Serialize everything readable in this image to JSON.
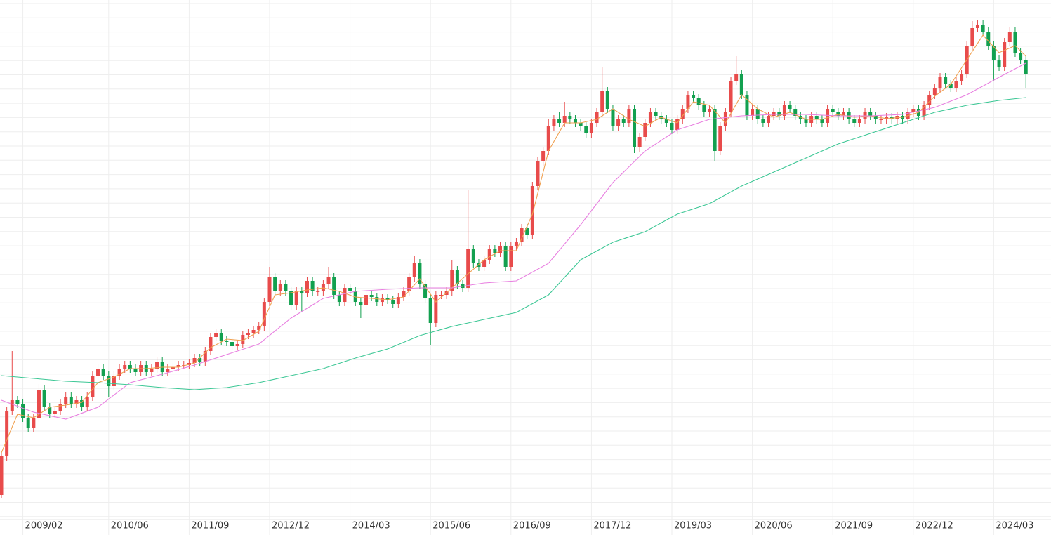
{
  "chart_data": {
    "type": "candlestick",
    "up_color": "#e84b4b",
    "down_color": "#12a04f",
    "ylim": [
      0,
      715
    ],
    "grid": true,
    "categories": [
      null,
      null,
      null,
      null,
      "2009/02",
      null,
      null,
      null,
      null,
      null,
      null,
      null,
      null,
      null,
      null,
      null,
      null,
      null,
      null,
      null,
      "2010/06",
      null,
      null,
      null,
      null,
      null,
      null,
      null,
      null,
      null,
      null,
      null,
      null,
      null,
      null,
      "2011/09",
      null,
      null,
      null,
      null,
      null,
      null,
      null,
      null,
      null,
      null,
      null,
      null,
      null,
      null,
      "2012/12",
      null,
      null,
      null,
      null,
      null,
      null,
      null,
      null,
      null,
      null,
      null,
      null,
      null,
      null,
      "2014/03",
      null,
      null,
      null,
      null,
      null,
      null,
      null,
      null,
      null,
      null,
      null,
      null,
      null,
      null,
      "2015/06",
      null,
      null,
      null,
      null,
      null,
      null,
      null,
      null,
      null,
      null,
      null,
      null,
      null,
      null,
      "2016/09",
      null,
      null,
      null,
      null,
      null,
      null,
      null,
      null,
      null,
      null,
      null,
      null,
      null,
      null,
      "2017/12",
      null,
      null,
      null,
      null,
      null,
      null,
      null,
      null,
      null,
      null,
      null,
      null,
      null,
      null,
      "2019/03",
      null,
      null,
      null,
      null,
      null,
      null,
      null,
      null,
      null,
      null,
      null,
      null,
      null,
      null,
      "2020/06",
      null,
      null,
      null,
      null,
      null,
      null,
      null,
      null,
      null,
      null,
      null,
      null,
      null,
      null,
      "2021/09",
      null,
      null,
      null,
      null,
      null,
      null,
      null,
      null,
      null,
      null,
      null,
      null,
      null,
      null,
      "2022/12",
      null,
      null,
      null,
      null,
      null,
      null,
      null,
      null,
      null,
      null,
      null,
      null,
      null,
      null,
      "2024/03",
      null,
      null,
      null,
      null,
      null,
      null
    ],
    "open": [
      10,
      65,
      130,
      145,
      140,
      120,
      105,
      120,
      160,
      135,
      125,
      130,
      140,
      150,
      140,
      145,
      135,
      150,
      180,
      190,
      180,
      165,
      180,
      190,
      195,
      190,
      185,
      195,
      185,
      190,
      200,
      185,
      190,
      192,
      195,
      195,
      198,
      205,
      200,
      215,
      235,
      240,
      230,
      228,
      222,
      225,
      238,
      240,
      245,
      250,
      285,
      320,
      300,
      310,
      300,
      280,
      300,
      298,
      315,
      300,
      300,
      310,
      320,
      295,
      285,
      305,
      300,
      285,
      280,
      295,
      292,
      285,
      290,
      288,
      282,
      292,
      300,
      320,
      340,
      310,
      290,
      255,
      295,
      295,
      300,
      330,
      310,
      305,
      360,
      340,
      335,
      345,
      360,
      355,
      365,
      335,
      365,
      370,
      390,
      380,
      450,
      485,
      500,
      535,
      545,
      540,
      550,
      545,
      540,
      535,
      525,
      540,
      555,
      585,
      560,
      535,
      545,
      540,
      560,
      505,
      520,
      540,
      555,
      550,
      545,
      540,
      530,
      545,
      560,
      580,
      575,
      565,
      555,
      560,
      500,
      535,
      555,
      600,
      610,
      580,
      550,
      560,
      545,
      540,
      550,
      555,
      550,
      565,
      560,
      550,
      545,
      540,
      550,
      545,
      540,
      560,
      555,
      550,
      555,
      545,
      540,
      545,
      555,
      550,
      545,
      545,
      548,
      545,
      550,
      545,
      555,
      560,
      550,
      565,
      580,
      590,
      605,
      595,
      590,
      600,
      610,
      650,
      675,
      680,
      670,
      650,
      630,
      620,
      655,
      670,
      640,
      630
    ],
    "high": [
      70,
      136,
      215,
      151,
      146,
      126,
      126,
      168,
      166,
      141,
      136,
      146,
      156,
      156,
      151,
      151,
      156,
      186,
      196,
      196,
      186,
      186,
      196,
      201,
      201,
      196,
      201,
      201,
      196,
      206,
      206,
      196,
      198,
      201,
      201,
      204,
      211,
      211,
      221,
      241,
      246,
      246,
      236,
      234,
      231,
      244,
      246,
      251,
      256,
      291,
      335,
      326,
      316,
      316,
      306,
      306,
      306,
      321,
      321,
      306,
      316,
      335,
      326,
      301,
      311,
      311,
      306,
      291,
      301,
      301,
      298,
      296,
      296,
      294,
      298,
      306,
      326,
      350,
      346,
      316,
      296,
      301,
      301,
      306,
      345,
      336,
      316,
      445,
      366,
      346,
      351,
      366,
      366,
      371,
      371,
      371,
      376,
      396,
      396,
      456,
      491,
      506,
      545,
      551,
      556,
      570,
      556,
      551,
      546,
      541,
      546,
      561,
      620,
      591,
      566,
      551,
      551,
      566,
      566,
      526,
      546,
      561,
      561,
      556,
      551,
      546,
      551,
      566,
      586,
      586,
      581,
      571,
      566,
      566,
      541,
      561,
      606,
      635,
      616,
      586,
      566,
      566,
      551,
      556,
      561,
      561,
      571,
      571,
      566,
      556,
      551,
      556,
      556,
      551,
      566,
      566,
      561,
      561,
      561,
      551,
      551,
      561,
      561,
      556,
      551,
      554,
      554,
      556,
      556,
      561,
      566,
      566,
      571,
      586,
      596,
      611,
      611,
      601,
      606,
      616,
      656,
      685,
      686,
      686,
      676,
      656,
      636,
      661,
      676,
      676,
      646,
      636
    ],
    "low": [
      5,
      59,
      124,
      134,
      114,
      99,
      99,
      114,
      129,
      119,
      119,
      124,
      134,
      134,
      134,
      129,
      129,
      144,
      174,
      174,
      150,
      159,
      174,
      184,
      184,
      179,
      179,
      179,
      179,
      184,
      179,
      179,
      184,
      186,
      189,
      189,
      192,
      194,
      194,
      209,
      229,
      224,
      222,
      216,
      216,
      219,
      232,
      234,
      239,
      244,
      279,
      294,
      294,
      294,
      274,
      274,
      270,
      292,
      294,
      294,
      294,
      304,
      289,
      279,
      279,
      294,
      279,
      262,
      274,
      286,
      279,
      279,
      282,
      276,
      276,
      286,
      294,
      314,
      304,
      284,
      223,
      249,
      289,
      289,
      294,
      304,
      299,
      299,
      334,
      329,
      329,
      339,
      349,
      349,
      329,
      329,
      359,
      364,
      374,
      374,
      444,
      479,
      494,
      529,
      534,
      534,
      539,
      534,
      529,
      519,
      519,
      534,
      549,
      554,
      529,
      529,
      534,
      534,
      497,
      499,
      514,
      534,
      544,
      539,
      534,
      524,
      524,
      539,
      554,
      569,
      559,
      549,
      549,
      485,
      494,
      529,
      549,
      594,
      574,
      544,
      544,
      539,
      534,
      534,
      544,
      544,
      544,
      554,
      544,
      539,
      534,
      534,
      539,
      534,
      534,
      549,
      544,
      544,
      539,
      534,
      534,
      539,
      544,
      539,
      539,
      539,
      539,
      539,
      539,
      539,
      549,
      544,
      544,
      559,
      574,
      584,
      589,
      584,
      584,
      594,
      604,
      644,
      669,
      664,
      644,
      600,
      614,
      614,
      649,
      634,
      624,
      590
    ],
    "close": [
      65,
      130,
      145,
      140,
      120,
      105,
      120,
      160,
      135,
      125,
      130,
      140,
      150,
      140,
      145,
      135,
      150,
      180,
      190,
      180,
      165,
      180,
      190,
      195,
      190,
      185,
      195,
      185,
      190,
      200,
      185,
      190,
      192,
      195,
      195,
      198,
      205,
      200,
      215,
      235,
      240,
      230,
      228,
      222,
      225,
      238,
      240,
      245,
      250,
      285,
      320,
      300,
      310,
      300,
      280,
      300,
      298,
      315,
      300,
      300,
      310,
      320,
      295,
      285,
      305,
      300,
      285,
      280,
      295,
      292,
      285,
      290,
      288,
      282,
      292,
      300,
      320,
      340,
      310,
      290,
      255,
      295,
      295,
      300,
      330,
      310,
      305,
      360,
      340,
      335,
      345,
      360,
      355,
      365,
      335,
      365,
      370,
      390,
      380,
      450,
      485,
      500,
      535,
      545,
      540,
      550,
      545,
      540,
      535,
      525,
      540,
      555,
      585,
      560,
      535,
      545,
      540,
      560,
      505,
      520,
      540,
      555,
      550,
      545,
      540,
      530,
      545,
      560,
      580,
      575,
      565,
      555,
      560,
      500,
      535,
      555,
      600,
      610,
      580,
      550,
      560,
      545,
      540,
      550,
      555,
      550,
      565,
      560,
      550,
      545,
      540,
      550,
      545,
      540,
      560,
      555,
      550,
      555,
      545,
      540,
      545,
      555,
      550,
      545,
      545,
      548,
      545,
      550,
      545,
      555,
      560,
      550,
      565,
      580,
      590,
      605,
      595,
      590,
      600,
      610,
      650,
      675,
      680,
      670,
      650,
      630,
      620,
      655,
      670,
      640,
      630,
      610
    ],
    "series": [
      {
        "color": "#f0a050",
        "x": [
          "2008/10",
          "2009/01",
          "2009/04",
          "2009/07",
          "2009/10",
          "2010/01",
          "2010/04",
          "2010/07",
          "2010/10",
          "2011/01",
          "2011/04",
          "2011/07",
          "2011/10",
          "2012/01",
          "2012/04",
          "2012/07",
          "2012/10",
          "2013/01",
          "2013/04",
          "2013/07",
          "2013/10",
          "2014/01",
          "2014/04",
          "2014/07",
          "2014/10",
          "2015/01",
          "2015/04",
          "2015/07",
          "2015/10",
          "2016/01",
          "2016/04",
          "2016/07",
          "2016/10",
          "2017/01",
          "2017/04",
          "2017/07",
          "2017/10",
          "2018/01",
          "2018/04",
          "2018/07",
          "2018/10",
          "2019/01",
          "2019/04",
          "2019/07",
          "2019/10",
          "2020/01",
          "2020/04",
          "2020/07",
          "2020/10",
          "2021/01",
          "2021/04",
          "2021/07",
          "2021/10",
          "2022/01",
          "2022/04",
          "2022/07",
          "2022/10",
          "2023/01",
          "2023/04",
          "2023/07",
          "2023/10",
          "2024/01",
          "2024/04",
          "2024/07",
          "2024/09"
        ],
        "values": [
          70,
          125,
          120,
          135,
          138,
          142,
          170,
          178,
          190,
          190,
          192,
          192,
          198,
          220,
          232,
          230,
          243,
          295,
          298,
          302,
          305,
          300,
          292,
          290,
          288,
          292,
          318,
          285,
          305,
          325,
          345,
          358,
          358,
          410,
          500,
          540,
          540,
          545,
          560,
          545,
          535,
          548,
          540,
          570,
          565,
          540,
          580,
          560,
          548,
          555,
          545,
          545,
          552,
          548,
          550,
          546,
          548,
          555,
          578,
          595,
          630,
          665,
          640,
          650,
          635
        ]
      },
      {
        "color": "#e87fe0",
        "x": [
          "2008/10",
          "2009/04",
          "2009/10",
          "2010/04",
          "2010/10",
          "2011/04",
          "2011/10",
          "2012/04",
          "2012/10",
          "2013/04",
          "2013/10",
          "2014/04",
          "2014/10",
          "2015/04",
          "2015/10",
          "2016/04",
          "2016/10",
          "2017/04",
          "2017/10",
          "2018/04",
          "2018/10",
          "2019/04",
          "2019/10",
          "2020/04",
          "2020/10",
          "2021/04",
          "2021/10",
          "2022/04",
          "2022/10",
          "2023/04",
          "2023/10",
          "2024/04",
          "2024/09"
        ],
        "values": [
          145,
          128,
          118,
          135,
          170,
          182,
          195,
          210,
          225,
          262,
          290,
          300,
          303,
          305,
          305,
          312,
          315,
          340,
          395,
          455,
          500,
          530,
          545,
          550,
          552,
          552,
          550,
          550,
          552,
          562,
          580,
          605,
          625
        ]
      },
      {
        "color": "#3cc795",
        "x": [
          "2008/10",
          "2009/04",
          "2009/10",
          "2010/04",
          "2010/10",
          "2011/04",
          "2011/10",
          "2012/04",
          "2012/10",
          "2013/04",
          "2013/10",
          "2014/04",
          "2014/10",
          "2015/04",
          "2015/10",
          "2016/04",
          "2016/10",
          "2017/04",
          "2017/10",
          "2018/04",
          "2018/10",
          "2019/04",
          "2019/10",
          "2020/04",
          "2020/10",
          "2021/04",
          "2021/10",
          "2022/04",
          "2022/10",
          "2023/04",
          "2023/10",
          "2024/04",
          "2024/09"
        ],
        "values": [
          180,
          176,
          172,
          170,
          167,
          163,
          160,
          163,
          170,
          180,
          190,
          205,
          218,
          237,
          250,
          260,
          270,
          295,
          345,
          370,
          385,
          410,
          425,
          450,
          470,
          490,
          510,
          525,
          540,
          555,
          565,
          572,
          576
        ]
      }
    ]
  }
}
